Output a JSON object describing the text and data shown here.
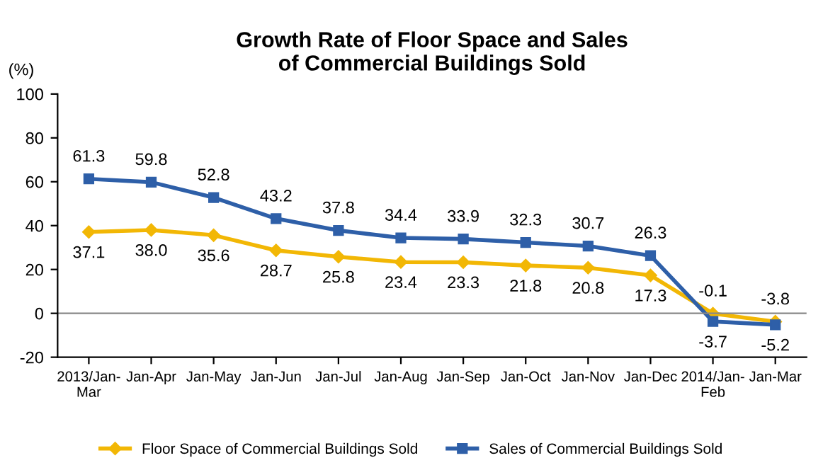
{
  "chart_data": {
    "type": "line",
    "title": "Growth Rate of Floor Space and Sales\nof Commercial Buildings Sold",
    "ylabel": "(%)",
    "categories": [
      "2013/Jan-Mar",
      "Jan-Apr",
      "Jan-May",
      "Jan-Jun",
      "Jan-Jul",
      "Jan-Aug",
      "Jan-Sep",
      "Jan-Oct",
      "Jan-Nov",
      "Jan-Dec",
      "2014/Jan-Feb",
      "Jan-Mar"
    ],
    "series": [
      {
        "name": "Floor Space of Commercial Buildings Sold",
        "color": "#f2b705",
        "marker": "diamond",
        "values": [
          37.1,
          38.0,
          35.6,
          28.7,
          25.8,
          23.4,
          23.3,
          21.8,
          20.8,
          17.3,
          -0.1,
          -3.8
        ],
        "value_labels": [
          "37.1",
          "38.0",
          "35.6",
          "28.7",
          "25.8",
          "23.4",
          "23.3",
          "21.8",
          "20.8",
          "17.3",
          "-0.1",
          "-3.8"
        ]
      },
      {
        "name": "Sales of Commercial Buildings Sold",
        "color": "#2e5fa8",
        "marker": "square",
        "values": [
          61.3,
          59.8,
          52.8,
          43.2,
          37.8,
          34.4,
          33.9,
          32.3,
          30.7,
          26.3,
          -3.7,
          -5.2
        ],
        "value_labels": [
          "61.3",
          "59.8",
          "52.8",
          "43.2",
          "37.8",
          "34.4",
          "33.9",
          "32.3",
          "30.7",
          "26.3",
          "-3.7",
          "-5.2"
        ]
      }
    ],
    "ylim": [
      -20,
      100
    ],
    "yticks": [
      -20,
      0,
      20,
      40,
      60,
      80,
      100
    ],
    "ref_lines": [
      {
        "axis": "y",
        "value": 0,
        "color": "#888888"
      }
    ],
    "legend": "bottom",
    "line_style": "solid"
  }
}
